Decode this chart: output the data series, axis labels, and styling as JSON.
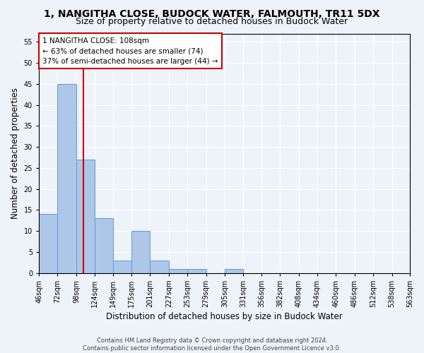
{
  "title": "1, NANGITHA CLOSE, BUDOCK WATER, FALMOUTH, TR11 5DX",
  "subtitle": "Size of property relative to detached houses in Budock Water",
  "xlabel": "Distribution of detached houses by size in Budock Water",
  "ylabel": "Number of detached properties",
  "bar_values": [
    14,
    45,
    27,
    13,
    3,
    10,
    3,
    1,
    1,
    0,
    1,
    0,
    0,
    0,
    0,
    0,
    0,
    0,
    0,
    0
  ],
  "bin_edges": [
    46,
    72,
    98,
    124,
    149,
    175,
    201,
    227,
    253,
    279,
    305,
    331,
    356,
    382,
    408,
    434,
    460,
    486,
    512,
    538,
    563
  ],
  "tick_labels": [
    "46sqm",
    "72sqm",
    "98sqm",
    "124sqm",
    "149sqm",
    "175sqm",
    "201sqm",
    "227sqm",
    "253sqm",
    "279sqm",
    "305sqm",
    "331sqm",
    "356sqm",
    "382sqm",
    "408sqm",
    "434sqm",
    "460sqm",
    "486sqm",
    "512sqm",
    "538sqm",
    "563sqm"
  ],
  "property_size": 108,
  "red_line_x": 108,
  "bar_color": "#aec6e8",
  "bar_edge_color": "#5a9fd4",
  "red_line_color": "#cc0000",
  "ylim": [
    0,
    57
  ],
  "yticks": [
    0,
    5,
    10,
    15,
    20,
    25,
    30,
    35,
    40,
    45,
    50,
    55
  ],
  "annotation_text": "1 NANGITHA CLOSE: 108sqm\n← 63% of detached houses are smaller (74)\n37% of semi-detached houses are larger (44) →",
  "footer_text": "Contains HM Land Registry data © Crown copyright and database right 2024.\nContains public sector information licensed under the Open Government Licence v3.0.",
  "background_color": "#eef2f9",
  "plot_background_color": "#eef2f9",
  "title_fontsize": 10,
  "subtitle_fontsize": 9,
  "axis_label_fontsize": 8.5,
  "tick_fontsize": 7,
  "annotation_fontsize": 7.5,
  "footer_fontsize": 6
}
